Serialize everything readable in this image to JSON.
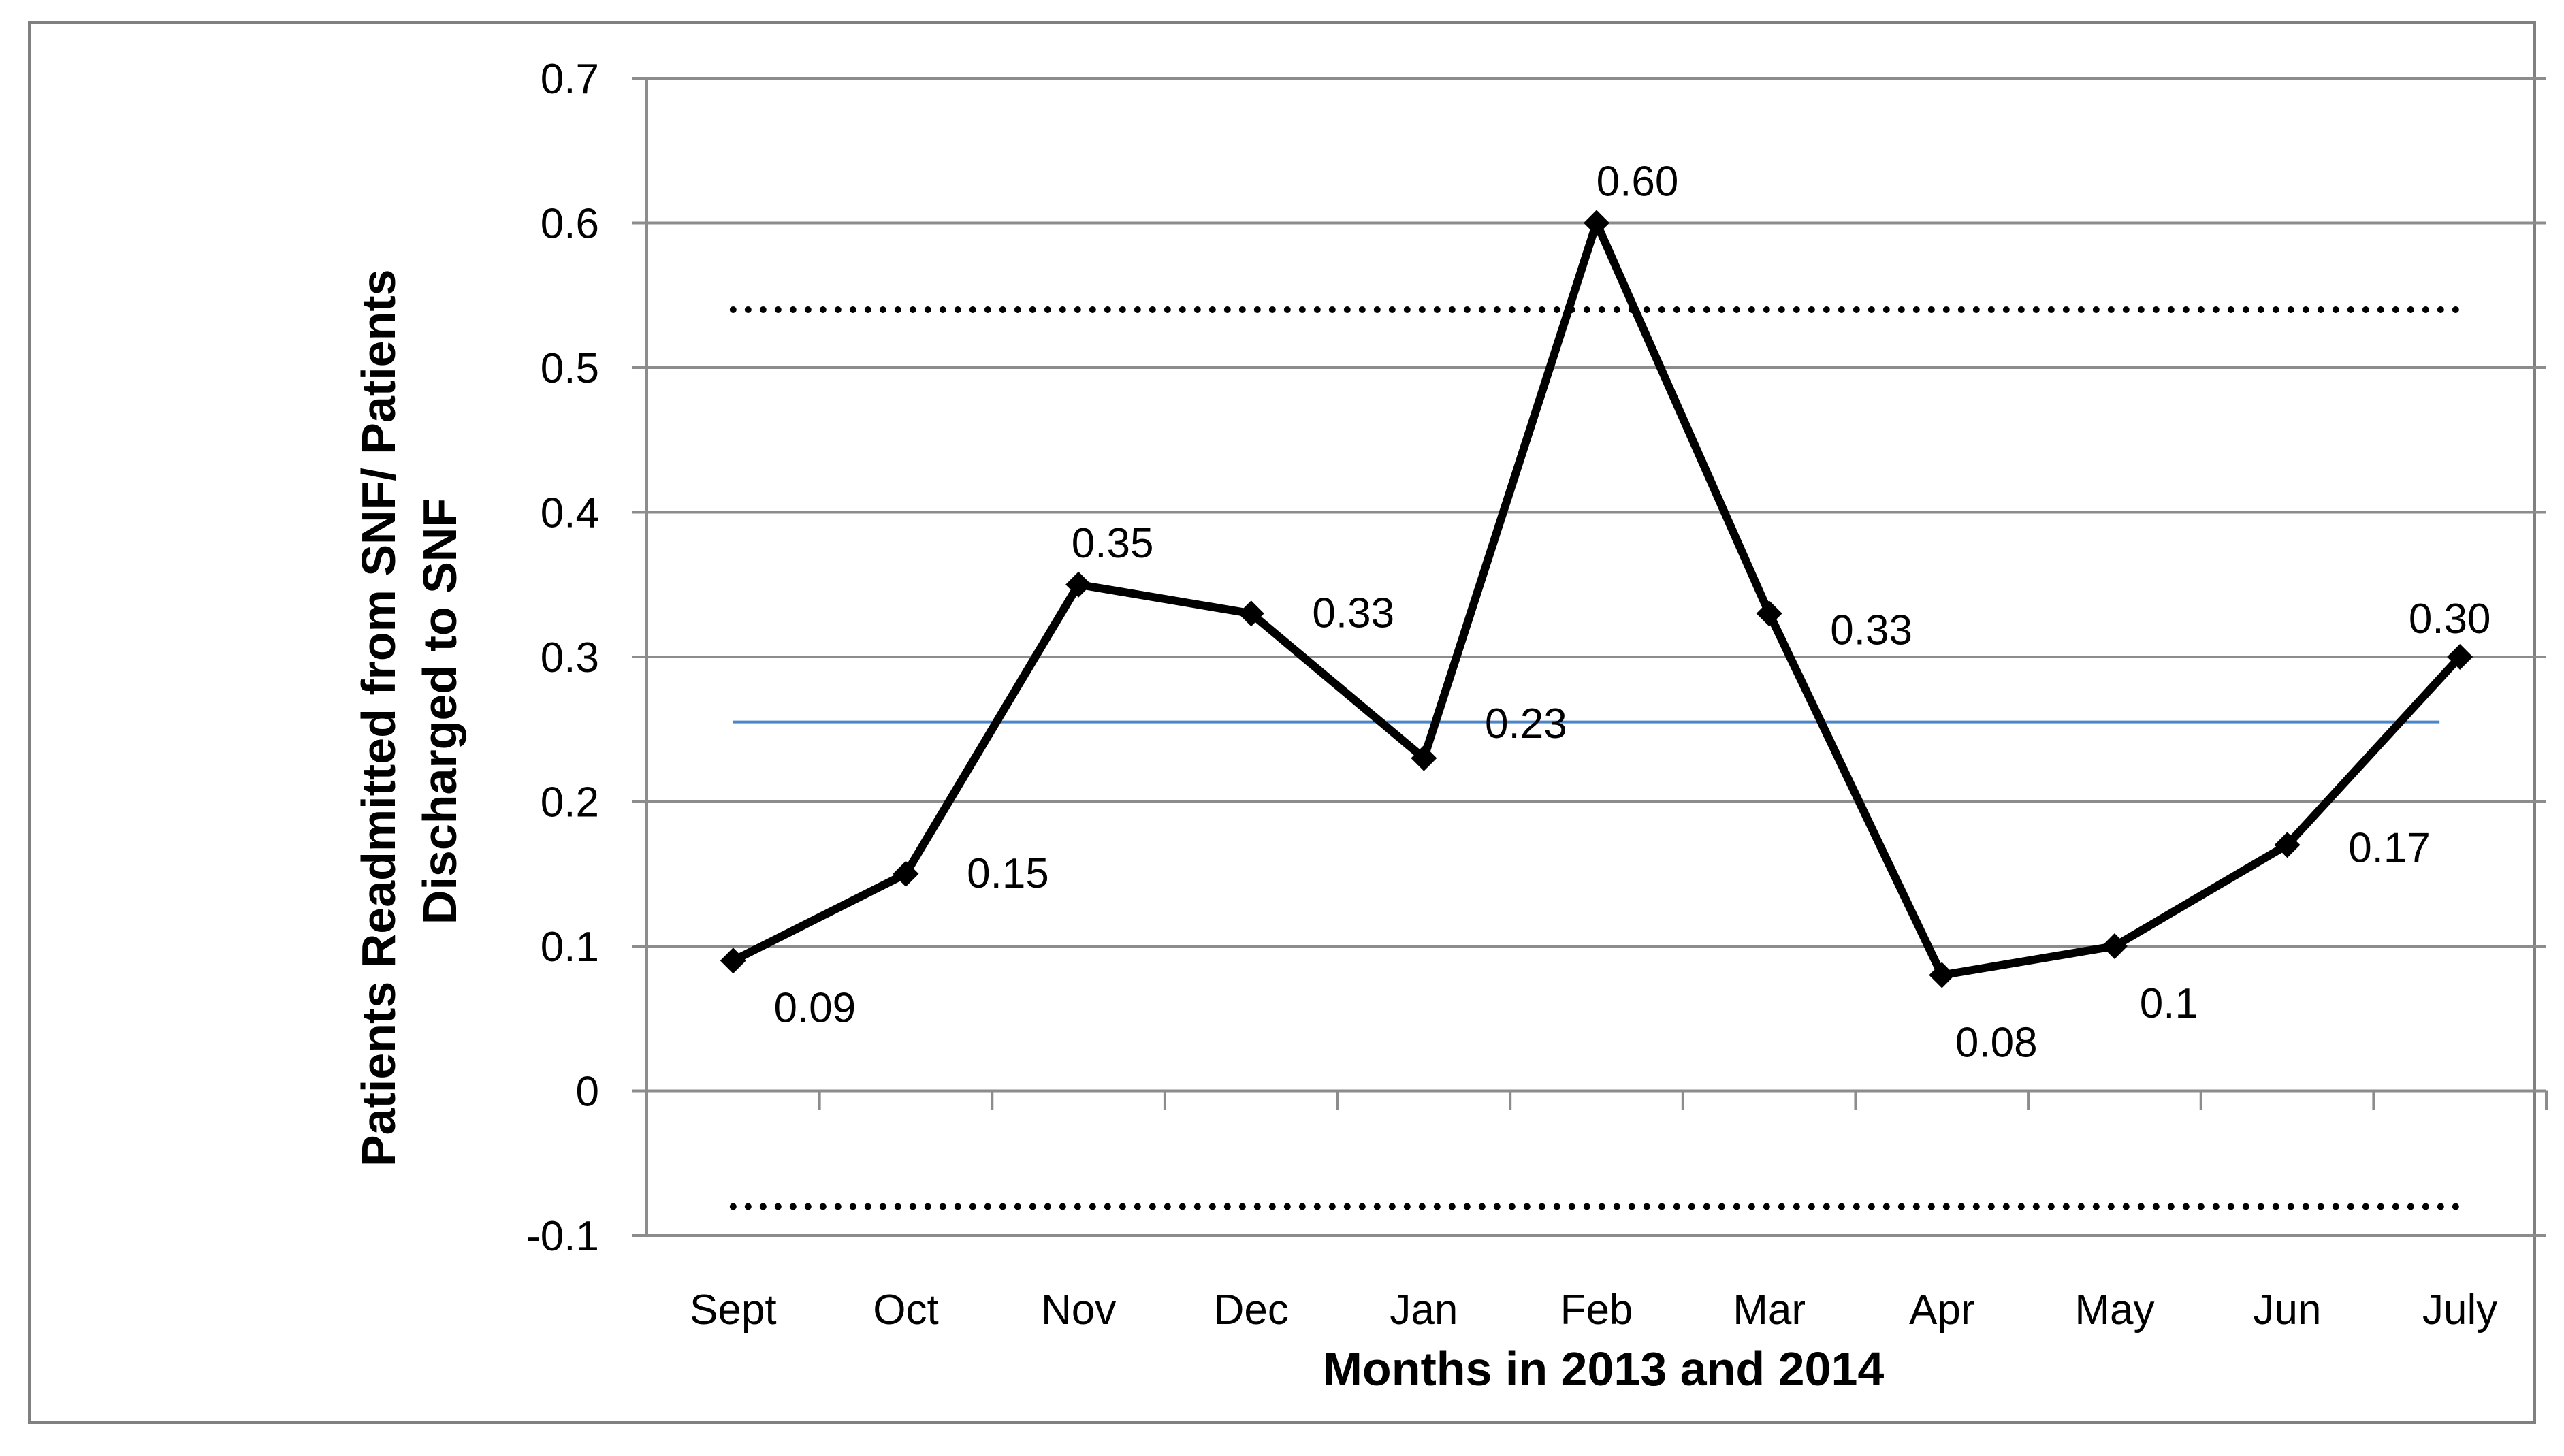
{
  "chart_data": {
    "type": "line",
    "categories": [
      "Sept",
      "Oct",
      "Nov",
      "Dec",
      "Jan",
      "Feb",
      "Mar",
      "Apr",
      "May",
      "Jun",
      "July"
    ],
    "series": [
      {
        "values": [
          0.09,
          0.15,
          0.35,
          0.33,
          0.23,
          0.6,
          0.33,
          0.08,
          0.1,
          0.17,
          0.3
        ],
        "color": "#000000",
        "marker": "diamond"
      }
    ],
    "data_labels": [
      "0.09",
      "0.15",
      "0.35",
      "0.33",
      "0.23",
      "0.60",
      "0.33",
      "0.08",
      "0.1",
      "0.17",
      "0.30"
    ],
    "reference_lines": [
      {
        "value": 0.54,
        "style": "dotted",
        "color": "#000000"
      },
      {
        "value": 0.255,
        "style": "solid",
        "color": "#4a86c8"
      },
      {
        "value": -0.08,
        "style": "dotted",
        "color": "#000000"
      }
    ],
    "yticks": [
      "0.7",
      "0.6",
      "0.5",
      "0.4",
      "0.3",
      "0.2",
      "0.1",
      "0",
      "-0.1"
    ],
    "ylim": [
      -0.1,
      0.7
    ],
    "grid": true,
    "legend": "none",
    "title": "",
    "xlabel": "Months in 2013 and 2014",
    "ylabel_lines": [
      "Patients Readmitted from SNF/ Patients",
      "Discharged to SNF"
    ]
  }
}
